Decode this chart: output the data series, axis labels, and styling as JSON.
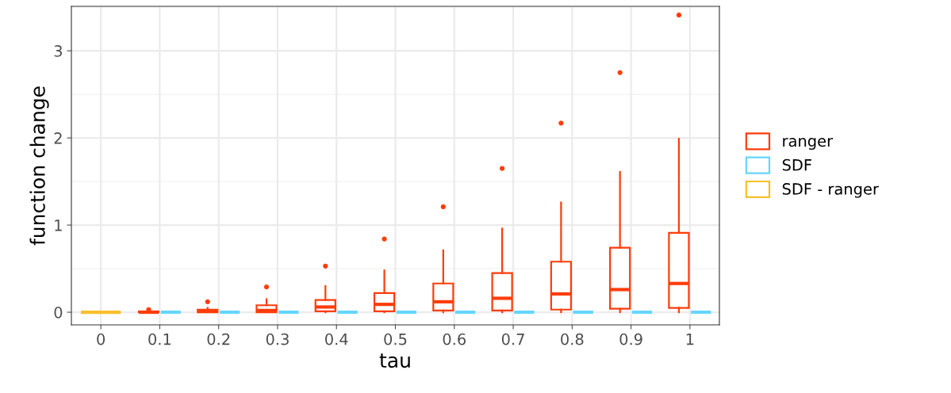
{
  "chart_data": {
    "type": "box",
    "xlabel": "tau",
    "ylabel": "function change",
    "categories": [
      "0",
      "0.1",
      "0.2",
      "0.3",
      "0.4",
      "0.5",
      "0.6",
      "0.7",
      "0.8",
      "0.9",
      "1"
    ],
    "ylim": [
      -0.145,
      3.51
    ],
    "yticks": [
      0,
      1,
      2,
      3
    ],
    "grid": true,
    "legend": "right",
    "series": [
      {
        "name": "ranger",
        "color": "#ff3d0a",
        "boxes": [
          null,
          {
            "low": 0,
            "q1": 0,
            "median": 0,
            "q3": 0.01,
            "high": 0.01,
            "outliers": [
              0.03
            ]
          },
          {
            "low": 0,
            "q1": 0,
            "median": 0.01,
            "q3": 0.03,
            "high": 0.05,
            "outliers": [
              0.12
            ]
          },
          {
            "low": 0,
            "q1": 0,
            "median": 0.02,
            "q3": 0.08,
            "high": 0.15,
            "outliers": [
              0.29
            ]
          },
          {
            "low": 0,
            "q1": 0.01,
            "median": 0.06,
            "q3": 0.14,
            "high": 0.3,
            "outliers": [
              0.53
            ]
          },
          {
            "low": 0,
            "q1": 0.01,
            "median": 0.09,
            "q3": 0.22,
            "high": 0.48,
            "outliers": [
              0.84
            ]
          },
          {
            "low": 0,
            "q1": 0.02,
            "median": 0.12,
            "q3": 0.33,
            "high": 0.71,
            "outliers": [
              1.21
            ]
          },
          {
            "low": 0,
            "q1": 0.02,
            "median": 0.16,
            "q3": 0.45,
            "high": 0.96,
            "outliers": [
              1.65
            ]
          },
          {
            "low": 0,
            "q1": 0.03,
            "median": 0.21,
            "q3": 0.58,
            "high": 1.26,
            "outliers": [
              2.17
            ]
          },
          {
            "low": 0,
            "q1": 0.04,
            "median": 0.26,
            "q3": 0.74,
            "high": 1.61,
            "outliers": [
              2.75
            ]
          },
          {
            "low": 0,
            "q1": 0.05,
            "median": 0.33,
            "q3": 0.91,
            "high": 1.99,
            "outliers": [
              3.41
            ]
          }
        ]
      },
      {
        "name": "SDF",
        "color": "#66d6ff",
        "boxes": [
          null,
          {
            "low": 0,
            "q1": 0,
            "median": 0,
            "q3": 0,
            "high": 0
          },
          {
            "low": 0,
            "q1": 0,
            "median": 0,
            "q3": 0,
            "high": 0
          },
          {
            "low": 0,
            "q1": 0,
            "median": 0,
            "q3": 0,
            "high": 0
          },
          {
            "low": 0,
            "q1": 0,
            "median": 0,
            "q3": 0,
            "high": 0
          },
          {
            "low": 0,
            "q1": 0,
            "median": 0,
            "q3": 0,
            "high": 0
          },
          {
            "low": 0,
            "q1": 0,
            "median": 0,
            "q3": 0,
            "high": 0
          },
          {
            "low": 0,
            "q1": 0,
            "median": 0,
            "q3": 0,
            "high": 0
          },
          {
            "low": 0,
            "q1": 0,
            "median": 0,
            "q3": 0,
            "high": 0
          },
          {
            "low": 0,
            "q1": 0,
            "median": 0,
            "q3": 0,
            "high": 0
          },
          {
            "low": 0,
            "q1": 0,
            "median": 0,
            "q3": 0,
            "high": 0
          }
        ]
      },
      {
        "name": "SDF - ranger",
        "color": "#f8bf2c",
        "boxes": [
          {
            "low": 0,
            "q1": 0,
            "median": 0,
            "q3": 0,
            "high": 0
          },
          null,
          null,
          null,
          null,
          null,
          null,
          null,
          null,
          null,
          null
        ]
      }
    ]
  }
}
